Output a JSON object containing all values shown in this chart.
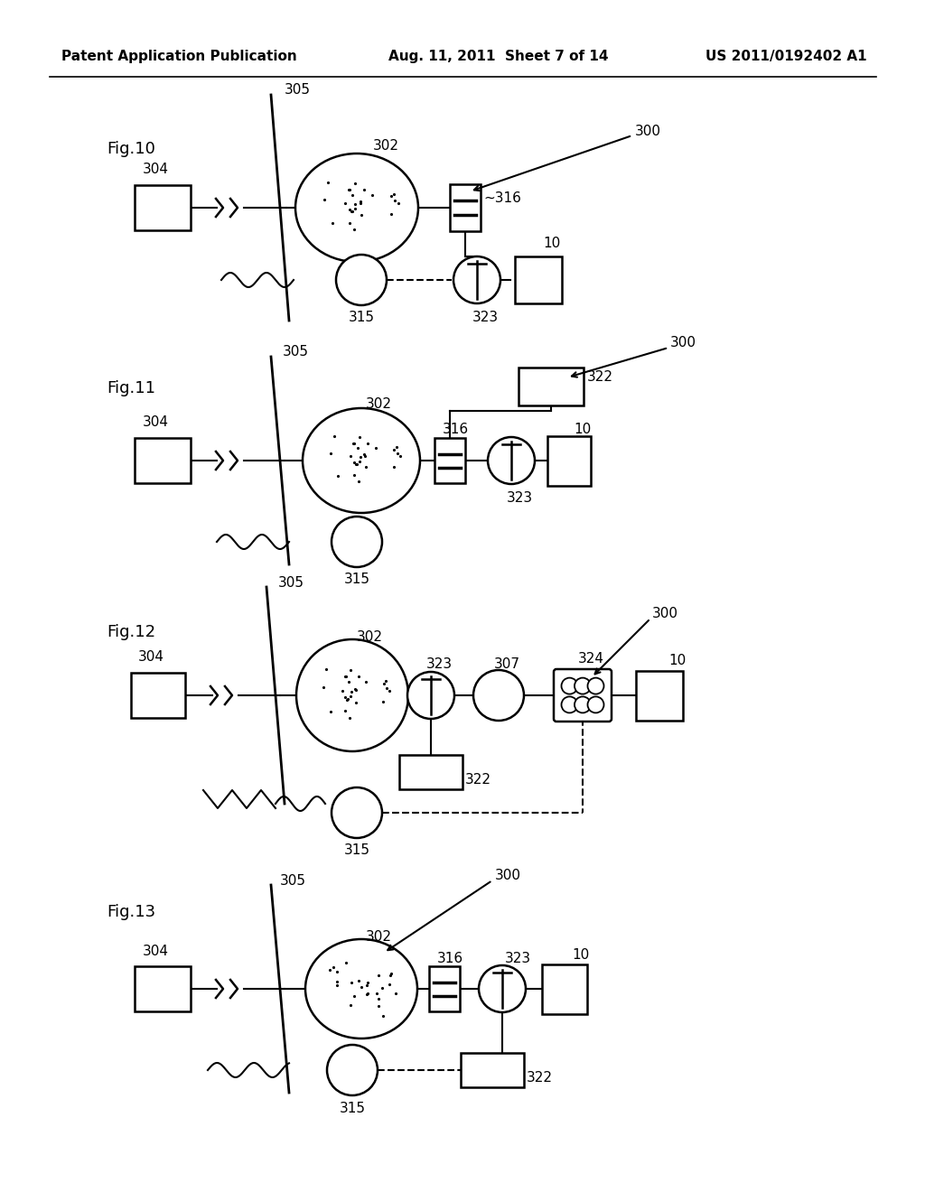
{
  "header_left": "Patent Application Publication",
  "header_mid": "Aug. 11, 2011  Sheet 7 of 14",
  "header_right": "US 2011/0192402 A1",
  "bg_color": "#ffffff",
  "fig_labels": [
    "Fig.10",
    "Fig.11",
    "Fig.12",
    "Fig.13"
  ]
}
